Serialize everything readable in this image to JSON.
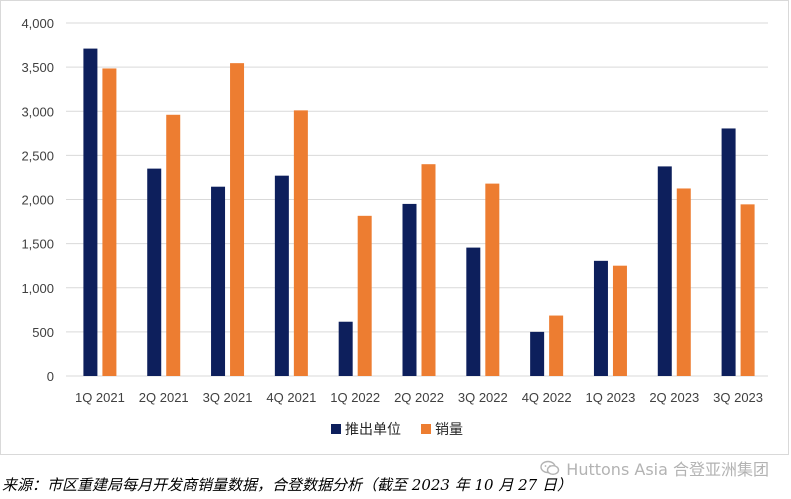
{
  "chart_data": {
    "type": "bar",
    "categories": [
      "1Q 2021",
      "2Q 2021",
      "3Q 2021",
      "4Q 2021",
      "1Q 2022",
      "2Q 2022",
      "3Q 2022",
      "4Q 2022",
      "1Q 2023",
      "2Q 2023",
      "3Q 2023"
    ],
    "series": [
      {
        "name": "推出单位",
        "color": "#0d1f5c",
        "values": [
          3710,
          2350,
          2145,
          2270,
          615,
          1950,
          1455,
          500,
          1305,
          2375,
          2805
        ]
      },
      {
        "name": "销量",
        "color": "#ed7d31",
        "values": [
          3485,
          2960,
          3545,
          3010,
          1815,
          2400,
          2180,
          685,
          1250,
          2125,
          1945
        ]
      }
    ],
    "ylim": [
      0,
      4000
    ],
    "yticks": [
      "0",
      "500",
      "1,000",
      "1,500",
      "2,000",
      "2,500",
      "3,000",
      "3,500",
      "4,000"
    ],
    "ytick_values": [
      0,
      500,
      1000,
      1500,
      2000,
      2500,
      3000,
      3500,
      4000
    ],
    "grid": true,
    "legend_position": "bottom",
    "title": "",
    "xlabel": "",
    "ylabel": ""
  },
  "source_note": "来源：市区重建局每月开发商销量数据，合登数据分析（截至 2023 年 10 月 27 日）",
  "watermark": {
    "text": "Huttons Asia 合登亚洲集团",
    "icon": "wechat-icon"
  }
}
